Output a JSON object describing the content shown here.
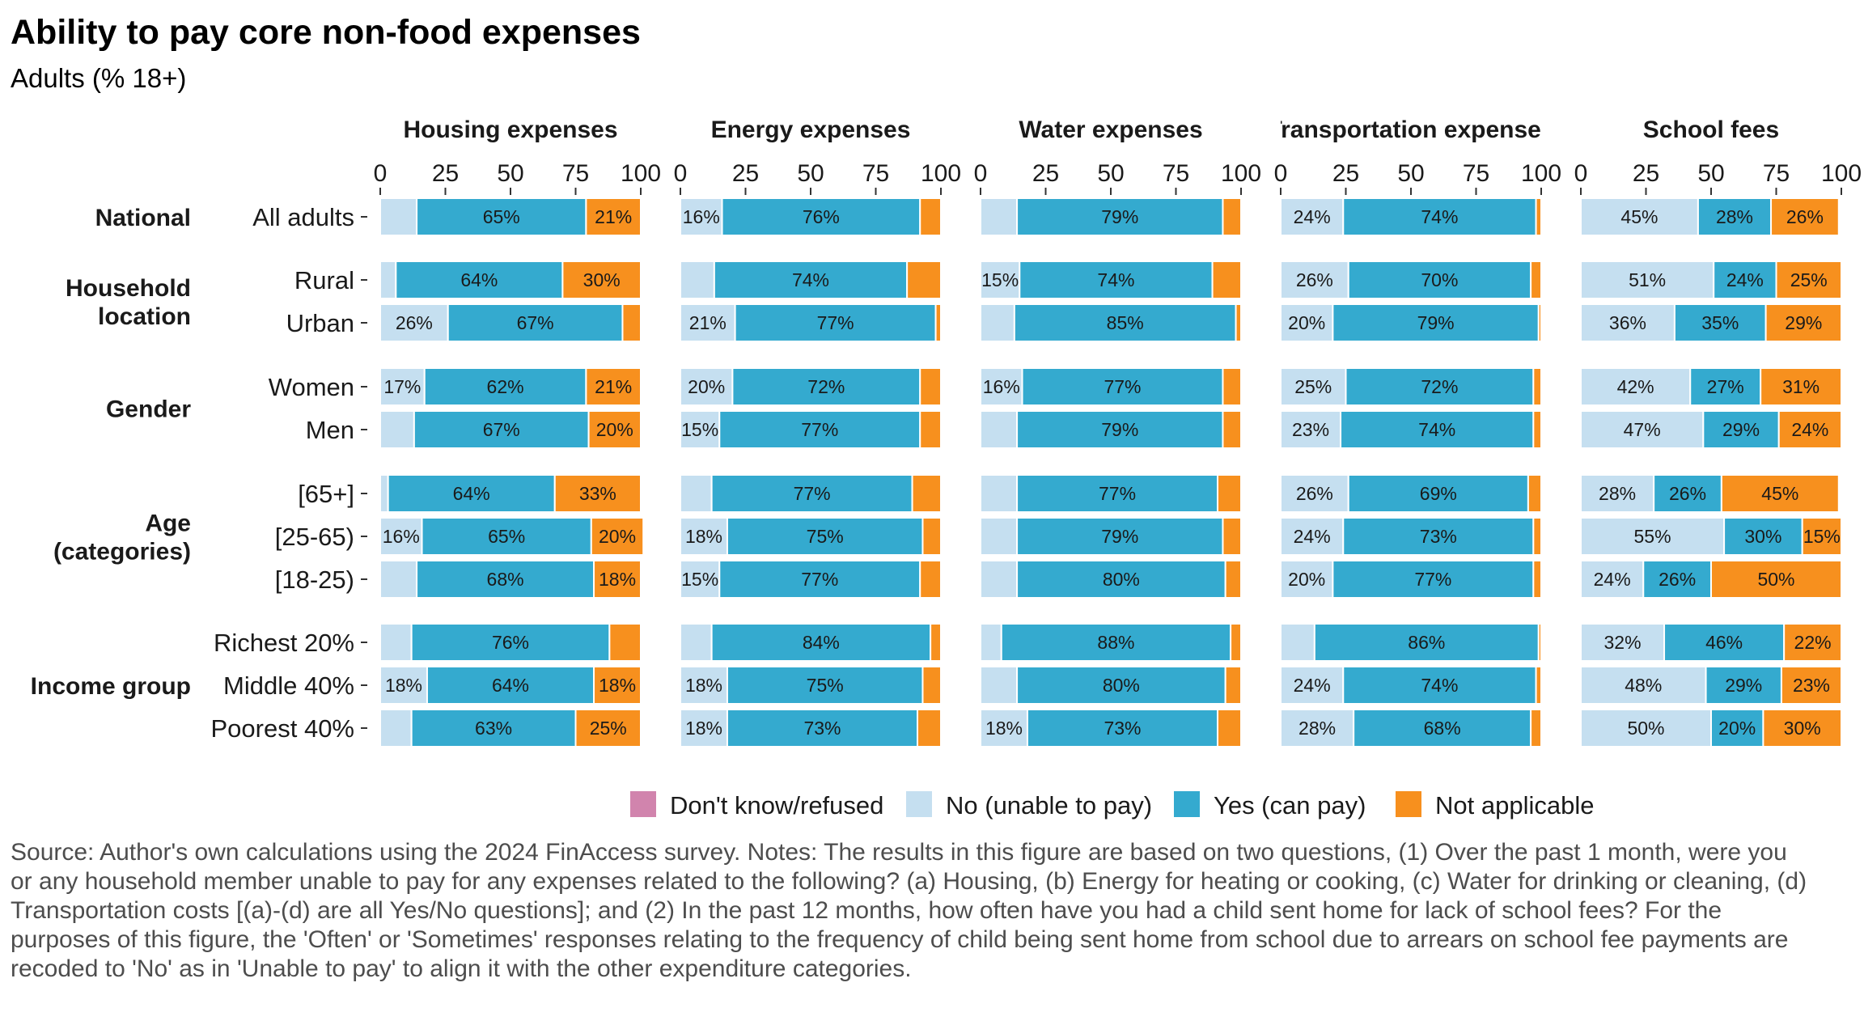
{
  "title": "Ability to pay core non-food expenses",
  "subtitle": "Adults (% 18+)",
  "note": "Source: Author's own calculations using the 2024 FinAccess survey. Notes: The results in this figure are based on two questions, (1) Over the past 1 month, were you or any household member unable to pay for any expenses related to the following? (a) Housing, (b) Energy for heating or cooking, (c) Water for drinking or cleaning, (d) Transportation costs [(a)-(d) are all Yes/No questions]; and (2) In the past 12 months, how often have you had a child sent home for lack of school fees? For the purposes of this figure, the 'Often' or 'Sometimes' responses relating to the frequency of child being sent home from school due to arrears on school fee payments are recoded to 'No' as in 'Unable to pay' to align it with the other expenditure categories.",
  "colors": {
    "Don't know/refused": "#d184ad",
    "No (unable to pay)": "#c5dff0",
    "Yes (can pay)": "#34aacf",
    "Not applicable": "#f7901e"
  },
  "chart_data": {
    "type": "bar",
    "orientation": "horizontal",
    "stacked": true,
    "xlim": [
      0,
      100
    ],
    "xticks": [
      "0",
      "25",
      "50",
      "75",
      "100"
    ],
    "legend_position": "bottom",
    "legend": [
      "Don't know/refused",
      "No (unable to pay)",
      "Yes (can pay)",
      "Not applicable"
    ],
    "series_order": [
      "Don't know/refused",
      "No (unable to pay)",
      "Yes (can pay)",
      "Not applicable"
    ],
    "facets": [
      "Housing expenses",
      "Energy expenses",
      "Water expenses",
      "Transportation expenses",
      "School fees"
    ],
    "groups": [
      {
        "name": "National",
        "rows": [
          "All adults"
        ]
      },
      {
        "name": "Household location",
        "rows": [
          "Rural",
          "Urban"
        ]
      },
      {
        "name": "Gender",
        "rows": [
          "Women",
          "Men"
        ]
      },
      {
        "name": "Age (categories)",
        "rows": [
          "[65+]",
          "[25-65)",
          "[18-25)"
        ]
      },
      {
        "name": "Income group",
        "rows": [
          "Richest 20%",
          "Middle 40%",
          "Poorest 40%"
        ]
      }
    ],
    "values": {
      "Housing expenses": {
        "All adults": [
          0,
          14,
          65,
          21
        ],
        "Rural": [
          0,
          6,
          64,
          30
        ],
        "Urban": [
          0,
          26,
          67,
          7
        ],
        "Women": [
          0,
          17,
          62,
          21
        ],
        "Men": [
          0,
          13,
          67,
          20
        ],
        "[65+]": [
          0,
          3,
          64,
          33
        ],
        "[25-65)": [
          0,
          16,
          65,
          20
        ],
        "[18-25)": [
          0,
          14,
          68,
          18
        ],
        "Richest 20%": [
          0,
          12,
          76,
          12
        ],
        "Middle 40%": [
          0,
          18,
          64,
          18
        ],
        "Poorest 40%": [
          0,
          12,
          63,
          25
        ]
      },
      "Energy expenses": {
        "All adults": [
          0,
          16,
          76,
          8
        ],
        "Rural": [
          0,
          13,
          74,
          13
        ],
        "Urban": [
          0,
          21,
          77,
          2
        ],
        "Women": [
          0,
          20,
          72,
          8
        ],
        "Men": [
          0,
          15,
          77,
          8
        ],
        "[65+]": [
          0,
          12,
          77,
          11
        ],
        "[25-65)": [
          0,
          18,
          75,
          7
        ],
        "[18-25)": [
          0,
          15,
          77,
          8
        ],
        "Richest 20%": [
          0,
          12,
          84,
          4
        ],
        "Middle 40%": [
          0,
          18,
          75,
          7
        ],
        "Poorest 40%": [
          0,
          18,
          73,
          9
        ]
      },
      "Water expenses": {
        "All adults": [
          0,
          14,
          79,
          7
        ],
        "Rural": [
          0,
          15,
          74,
          11
        ],
        "Urban": [
          0,
          13,
          85,
          2
        ],
        "Women": [
          0,
          16,
          77,
          7
        ],
        "Men": [
          0,
          14,
          79,
          7
        ],
        "[65+]": [
          0,
          14,
          77,
          9
        ],
        "[25-65)": [
          0,
          14,
          79,
          7
        ],
        "[18-25)": [
          0,
          14,
          80,
          6
        ],
        "Richest 20%": [
          0,
          8,
          88,
          4
        ],
        "Middle 40%": [
          0,
          14,
          80,
          6
        ],
        "Poorest 40%": [
          0,
          18,
          73,
          9
        ]
      },
      "Transportation expenses": {
        "All adults": [
          0,
          24,
          74,
          2
        ],
        "Rural": [
          0,
          26,
          70,
          4
        ],
        "Urban": [
          0,
          20,
          79,
          1
        ],
        "Women": [
          0,
          25,
          72,
          3
        ],
        "Men": [
          0,
          23,
          74,
          3
        ],
        "[65+]": [
          0,
          26,
          69,
          5
        ],
        "[25-65)": [
          0,
          24,
          73,
          3
        ],
        "[18-25)": [
          0,
          20,
          77,
          3
        ],
        "Richest 20%": [
          0,
          13,
          86,
          1
        ],
        "Middle 40%": [
          0,
          24,
          74,
          2
        ],
        "Poorest 40%": [
          0,
          28,
          68,
          4
        ]
      },
      "School fees": {
        "All adults": [
          0,
          45,
          28,
          26
        ],
        "Rural": [
          0,
          51,
          24,
          25
        ],
        "Urban": [
          0,
          36,
          35,
          29
        ],
        "Women": [
          0,
          42,
          27,
          31
        ],
        "Men": [
          0,
          47,
          29,
          24
        ],
        "[65+]": [
          0,
          28,
          26,
          45
        ],
        "[25-65)": [
          0,
          55,
          30,
          15
        ],
        "[18-25)": [
          0,
          24,
          26,
          50
        ],
        "Richest 20%": [
          0,
          32,
          46,
          22
        ],
        "Middle 40%": [
          0,
          48,
          29,
          23
        ],
        "Poorest 40%": [
          0,
          50,
          20,
          30
        ]
      }
    }
  }
}
